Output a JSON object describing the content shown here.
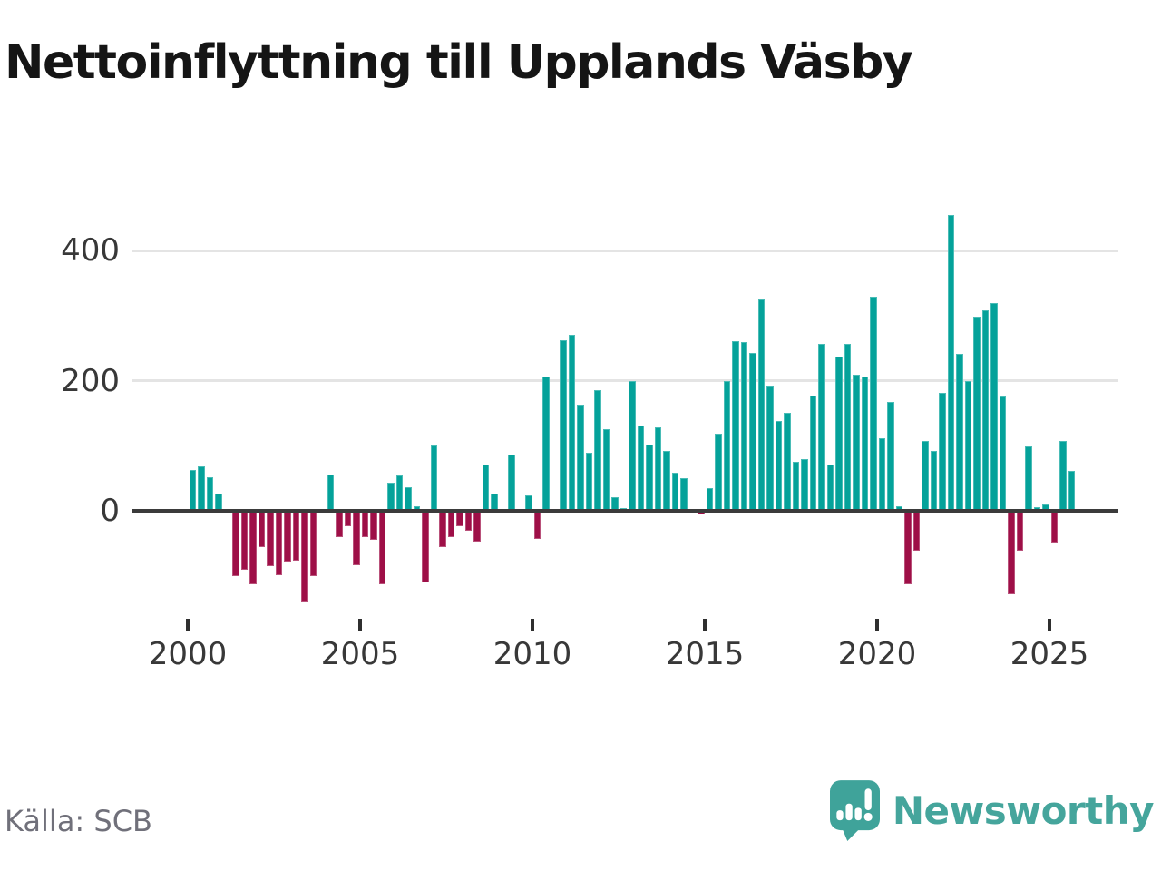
{
  "title": "Nettoinflyttning till Upplands Väsby",
  "source": "Källa: SCB",
  "brand": {
    "wordmark": "Newsworthy",
    "icon": "speech-bubble-barchart-icon"
  },
  "colors": {
    "positive_bar": "#04a29a",
    "negative_bar": "#9e0f47",
    "zero_axis": "#3b3b3b",
    "gridline": "#e4e4e4",
    "tick_label": "#383838",
    "title_text": "#151515",
    "source_text": "#70707a",
    "brand_teal": "#45a59c"
  },
  "chart_data": {
    "type": "bar",
    "title": "Nettoinflyttning till Upplands Väsby",
    "xlabel": "",
    "ylabel": "",
    "legend": "none",
    "grid": "horizontal",
    "ylim": [
      -160,
      465
    ],
    "y_ticks": [
      0,
      200,
      400
    ],
    "x_axis_tick_years": [
      "2000",
      "2005",
      "2010",
      "2015",
      "2020",
      "2025"
    ],
    "frequency": "quarterly",
    "x": [
      "2000 Q1",
      "2000 Q2",
      "2000 Q3",
      "2000 Q4",
      "2001 Q1",
      "2001 Q2",
      "2001 Q3",
      "2001 Q4",
      "2002 Q1",
      "2002 Q2",
      "2002 Q3",
      "2002 Q4",
      "2003 Q1",
      "2003 Q2",
      "2003 Q3",
      "2003 Q4",
      "2004 Q1",
      "2004 Q2",
      "2004 Q3",
      "2004 Q4",
      "2005 Q1",
      "2005 Q2",
      "2005 Q3",
      "2005 Q4",
      "2006 Q1",
      "2006 Q2",
      "2006 Q3",
      "2006 Q4",
      "2007 Q1",
      "2007 Q2",
      "2007 Q3",
      "2007 Q4",
      "2008 Q1",
      "2008 Q2",
      "2008 Q3",
      "2008 Q4",
      "2009 Q1",
      "2009 Q2",
      "2009 Q3",
      "2009 Q4",
      "2010 Q1",
      "2010 Q2",
      "2010 Q3",
      "2010 Q4",
      "2011 Q1",
      "2011 Q2",
      "2011 Q3",
      "2011 Q4",
      "2012 Q1",
      "2012 Q2",
      "2012 Q3",
      "2012 Q4",
      "2013 Q1",
      "2013 Q2",
      "2013 Q3",
      "2013 Q4",
      "2014 Q1",
      "2014 Q2",
      "2014 Q3",
      "2014 Q4",
      "2015 Q1",
      "2015 Q2",
      "2015 Q3",
      "2015 Q4",
      "2016 Q1",
      "2016 Q2",
      "2016 Q3",
      "2016 Q4",
      "2017 Q1",
      "2017 Q2",
      "2017 Q3",
      "2017 Q4",
      "2018 Q1",
      "2018 Q2",
      "2018 Q3",
      "2018 Q4",
      "2019 Q1",
      "2019 Q2",
      "2019 Q3",
      "2019 Q4",
      "2020 Q1",
      "2020 Q2",
      "2020 Q3",
      "2020 Q4",
      "2021 Q1",
      "2021 Q2",
      "2021 Q3",
      "2021 Q4",
      "2022 Q1",
      "2022 Q2",
      "2022 Q3",
      "2022 Q4",
      "2023 Q1",
      "2023 Q2",
      "2023 Q3",
      "2023 Q4",
      "2024 Q1",
      "2024 Q2",
      "2024 Q3",
      "2024 Q4",
      "2025 Q1",
      "2025 Q2",
      "2025 Q3"
    ],
    "values": [
      63,
      68,
      52,
      26,
      0,
      -101,
      -90,
      -113,
      -56,
      -85,
      -99,
      -78,
      -76,
      -139,
      -101,
      0,
      56,
      -40,
      -23,
      -83,
      -40,
      -45,
      -113,
      43,
      55,
      37,
      7,
      -110,
      100,
      -56,
      -40,
      -23,
      -30,
      -47,
      71,
      27,
      0,
      87,
      0,
      24,
      -43,
      207,
      0,
      263,
      271,
      163,
      89,
      185,
      126,
      21,
      4,
      199,
      131,
      102,
      128,
      92,
      58,
      50,
      0,
      -6,
      35,
      119,
      199,
      261,
      259,
      243,
      325,
      193,
      138,
      151,
      75,
      80,
      177,
      257,
      71,
      237,
      257,
      209,
      206,
      330,
      112,
      167,
      7,
      -113,
      -61,
      108,
      92,
      182,
      455,
      241,
      199,
      299,
      308,
      320,
      176,
      -128,
      -61,
      99,
      6,
      10,
      -49,
      108,
      61
    ]
  }
}
